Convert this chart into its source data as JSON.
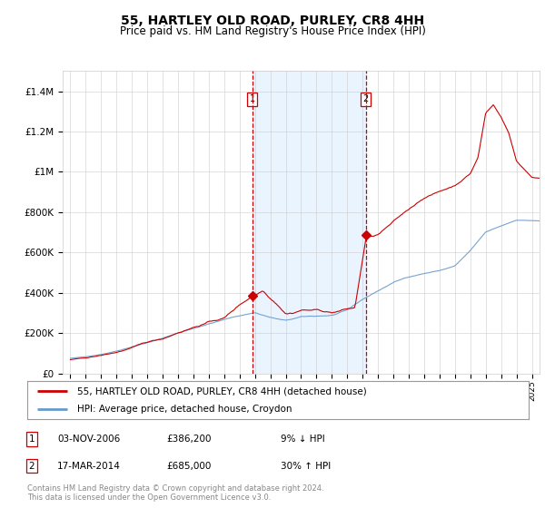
{
  "title": "55, HARTLEY OLD ROAD, PURLEY, CR8 4HH",
  "subtitle": "Price paid vs. HM Land Registry's House Price Index (HPI)",
  "ylim": [
    0,
    1500000
  ],
  "yticks": [
    0,
    200000,
    400000,
    600000,
    800000,
    1000000,
    1200000,
    1400000
  ],
  "ytick_labels": [
    "£0",
    "£200K",
    "£400K",
    "£600K",
    "£800K",
    "£1M",
    "£1.2M",
    "£1.4M"
  ],
  "sale1_year": 2006.84,
  "sale1_price": 386200,
  "sale1_label": "1",
  "sale2_year": 2014.21,
  "sale2_price": 685000,
  "sale2_label": "2",
  "legend_line1": "55, HARTLEY OLD ROAD, PURLEY, CR8 4HH (detached house)",
  "legend_line2": "HPI: Average price, detached house, Croydon",
  "table_row1": [
    "1",
    "03-NOV-2006",
    "£386,200",
    "9% ↓ HPI"
  ],
  "table_row2": [
    "2",
    "17-MAR-2014",
    "£685,000",
    "30% ↑ HPI"
  ],
  "footer1": "Contains HM Land Registry data © Crown copyright and database right 2024.",
  "footer2": "This data is licensed under the Open Government Licence v3.0.",
  "line_color_red": "#cc0000",
  "line_color_blue": "#6699cc",
  "shade_color": "#ddeeff",
  "background_color": "#ffffff",
  "title_fontsize": 10,
  "subtitle_fontsize": 8.5
}
